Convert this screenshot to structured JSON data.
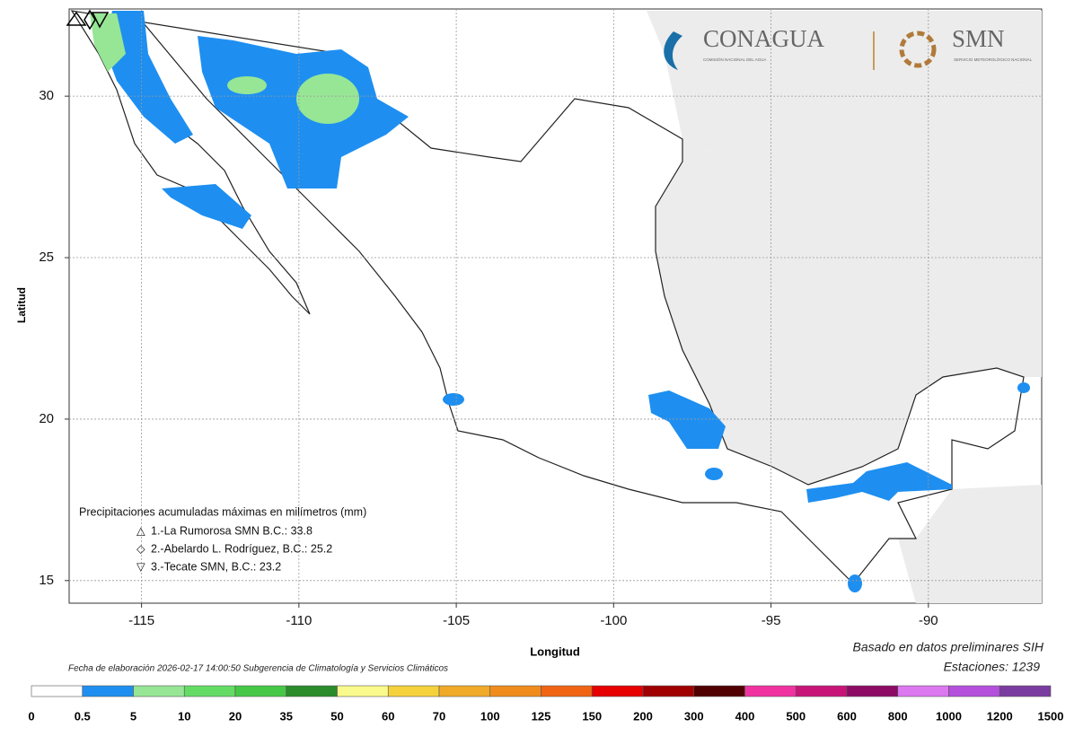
{
  "header": {
    "logos": [
      {
        "name": "CONAGUA",
        "subtitle": "COMISIÓN NACIONAL DEL AGUA"
      },
      {
        "name": "SMN",
        "subtitle": "SERVICIO METEOROLÓGICO NACIONAL"
      }
    ]
  },
  "map": {
    "lonlim": [
      -117.3,
      -86.4
    ],
    "latlim": [
      14.3,
      32.7
    ],
    "lonticks": [
      -115,
      -110,
      -105,
      -100,
      -95,
      -90
    ],
    "latticks": [
      15,
      20,
      25,
      30
    ],
    "xlabel": "Longitud",
    "ylabel": "Latitud",
    "legend_title": "Precipitaciones acumuladas máximas en milímetros (mm)",
    "stations": [
      "1.-La Rumorosa SMN B.C.: 33.8",
      "2.-Abelardo L. Rodríguez, B.C.: 25.2",
      "3.-Tecate SMN, B.C.: 23.2"
    ]
  },
  "footer": {
    "date": "Fecha de elaboración 2026-02-17 14:00:50 Subgerencia de Climatología y Servicios Climáticos",
    "source": "Basado en datos preliminares SIH",
    "stations": "Estaciones:  1239"
  },
  "colorbar": {
    "bounds": [
      0,
      0.5,
      5,
      10,
      20,
      35,
      50,
      60,
      70,
      100,
      125,
      150,
      200,
      300,
      400,
      500,
      600,
      800,
      1000,
      1200,
      1500
    ],
    "colors": [
      "#ffffff",
      "#1e8ff0",
      "#96e696",
      "#64dc64",
      "#46c846",
      "#2a8c2a",
      "#fafa8c",
      "#f5d23c",
      "#f0aa28",
      "#f08c1e",
      "#f06414",
      "#e60000",
      "#a00000",
      "#500000",
      "#f032a0",
      "#c81478",
      "#8c0a64",
      "#dc78f0",
      "#b450dc",
      "#7a3ca0"
    ]
  }
}
